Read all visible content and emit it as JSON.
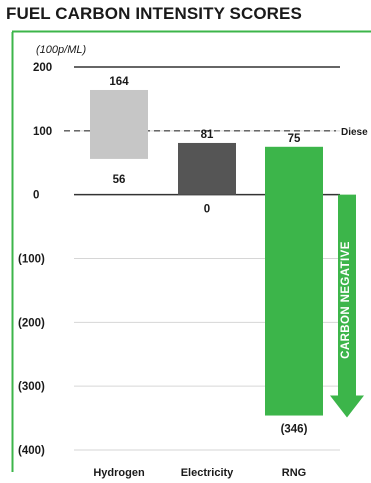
{
  "title": "FUEL CARBON INTENSITY SCORES",
  "colors": {
    "frame": "#3cb54a",
    "hydrogen": "#c6c6c6",
    "electricity": "#555555",
    "rng": "#3cb54a",
    "text": "#1a1a1a",
    "grid": "#d6d6d6",
    "axis": "#333333"
  },
  "chart_data": {
    "type": "bar",
    "title": "FUEL CARBON INTENSITY SCORES",
    "ylabel": "(100p/ML)",
    "ylim": [
      -400,
      200
    ],
    "yticks": [
      {
        "value": 200,
        "label": "200"
      },
      {
        "value": 100,
        "label": "100"
      },
      {
        "value": 0,
        "label": "0"
      },
      {
        "value": -100,
        "label": "(100)"
      },
      {
        "value": -200,
        "label": "(200)"
      },
      {
        "value": -300,
        "label": "(300)"
      },
      {
        "value": -400,
        "label": "(400)"
      }
    ],
    "categories": [
      "Hydrogen",
      "Electricity",
      "RNG"
    ],
    "bars": [
      {
        "category": "Hydrogen",
        "low": 56,
        "high": 164,
        "low_label": "56",
        "high_label": "164"
      },
      {
        "category": "Electricity",
        "low": 0,
        "high": 81,
        "low_label": "0",
        "high_label": "81"
      },
      {
        "category": "RNG",
        "low": -346,
        "high": 75,
        "low_label": "(346)",
        "high_label": "75"
      }
    ],
    "reference_line": {
      "value": 100,
      "label": "Diese"
    },
    "annotation": {
      "text": "CARBON NEGATIVE",
      "from": 0,
      "to": -346
    },
    "grid": true
  }
}
